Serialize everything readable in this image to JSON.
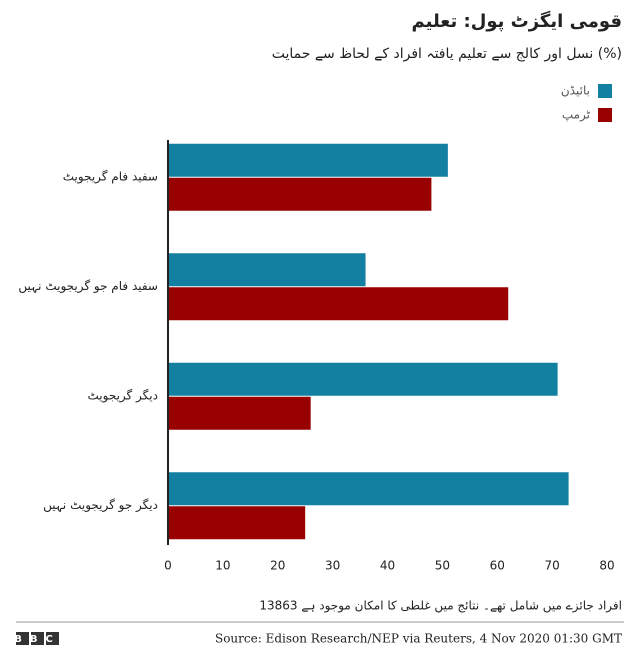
{
  "chart_data": {
    "type": "barh",
    "title": "قومی ایگزٹ پول: تعلیم",
    "subtitle": "نسل اور کالج سے تعلیم یافتہ افراد کے لحاظ سے حمایت (%)",
    "categories": [
      "سفید فام گریجویٹ",
      "سفید فام جو گریجویٹ نہیں",
      "دیگر گریجویٹ",
      "دیگر جو گریجویٹ نہیں"
    ],
    "series": [
      {
        "name": "بائیڈن",
        "color": "#1380a1",
        "values": [
          51,
          36,
          71,
          73
        ]
      },
      {
        "name": "ٹرمپ",
        "color": "#990000",
        "values": [
          48,
          62,
          26,
          25
        ]
      }
    ],
    "xlim": [
      0,
      80
    ],
    "xticks": [
      0,
      10,
      20,
      30,
      40,
      50,
      60,
      70,
      80
    ],
    "legend": "top-right",
    "note": "13863 افراد جائزے میں شامل تھے۔ نتائج میں غلطی کا امکان موجود ہے",
    "source": "Source: Edison Research/NEP via Reuters, 4 Nov 2020 01:30 GMT",
    "logo": "BBC"
  }
}
